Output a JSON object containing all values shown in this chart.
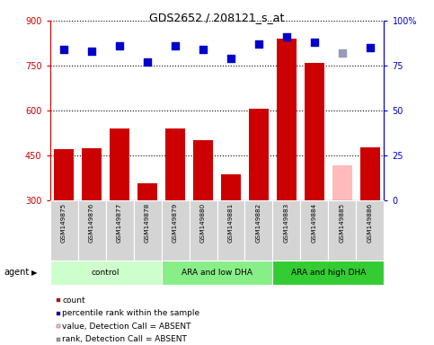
{
  "title": "GDS2652 / 208121_s_at",
  "samples": [
    "GSM149875",
    "GSM149876",
    "GSM149877",
    "GSM149878",
    "GSM149879",
    "GSM149880",
    "GSM149881",
    "GSM149882",
    "GSM149883",
    "GSM149884",
    "GSM149885",
    "GSM149886"
  ],
  "counts": [
    470,
    473,
    540,
    355,
    540,
    500,
    385,
    605,
    840,
    760,
    415,
    475
  ],
  "percentiles": [
    84,
    83,
    86,
    77,
    86,
    84,
    79,
    87,
    91,
    88,
    82,
    85
  ],
  "absent_mask": [
    false,
    false,
    false,
    false,
    false,
    false,
    false,
    false,
    false,
    false,
    true,
    false
  ],
  "bar_color_normal": "#cc0000",
  "bar_color_absent": "#ffbbbb",
  "dot_color_normal": "#0000cc",
  "dot_color_absent": "#9999bb",
  "ylim_left": [
    300,
    900
  ],
  "ylim_right": [
    0,
    100
  ],
  "yticks_left": [
    300,
    450,
    600,
    750,
    900
  ],
  "yticks_right": [
    0,
    25,
    50,
    75,
    100
  ],
  "ytick_labels_right": [
    "0",
    "25",
    "50",
    "75",
    "100%"
  ],
  "groups": [
    {
      "label": "control",
      "start": 0,
      "end": 3,
      "color": "#ccffcc"
    },
    {
      "label": "ARA and low DHA",
      "start": 4,
      "end": 7,
      "color": "#88ee88"
    },
    {
      "label": "ARA and high DHA",
      "start": 8,
      "end": 11,
      "color": "#33cc33"
    }
  ],
  "legend_items": [
    {
      "label": "count",
      "color": "#cc0000"
    },
    {
      "label": "percentile rank within the sample",
      "color": "#0000cc"
    },
    {
      "label": "value, Detection Call = ABSENT",
      "color": "#ffbbbb"
    },
    {
      "label": "rank, Detection Call = ABSENT",
      "color": "#9999bb"
    }
  ],
  "background_color": "#ffffff",
  "agent_label": "agent",
  "dot_size": 28,
  "bar_width": 0.7
}
